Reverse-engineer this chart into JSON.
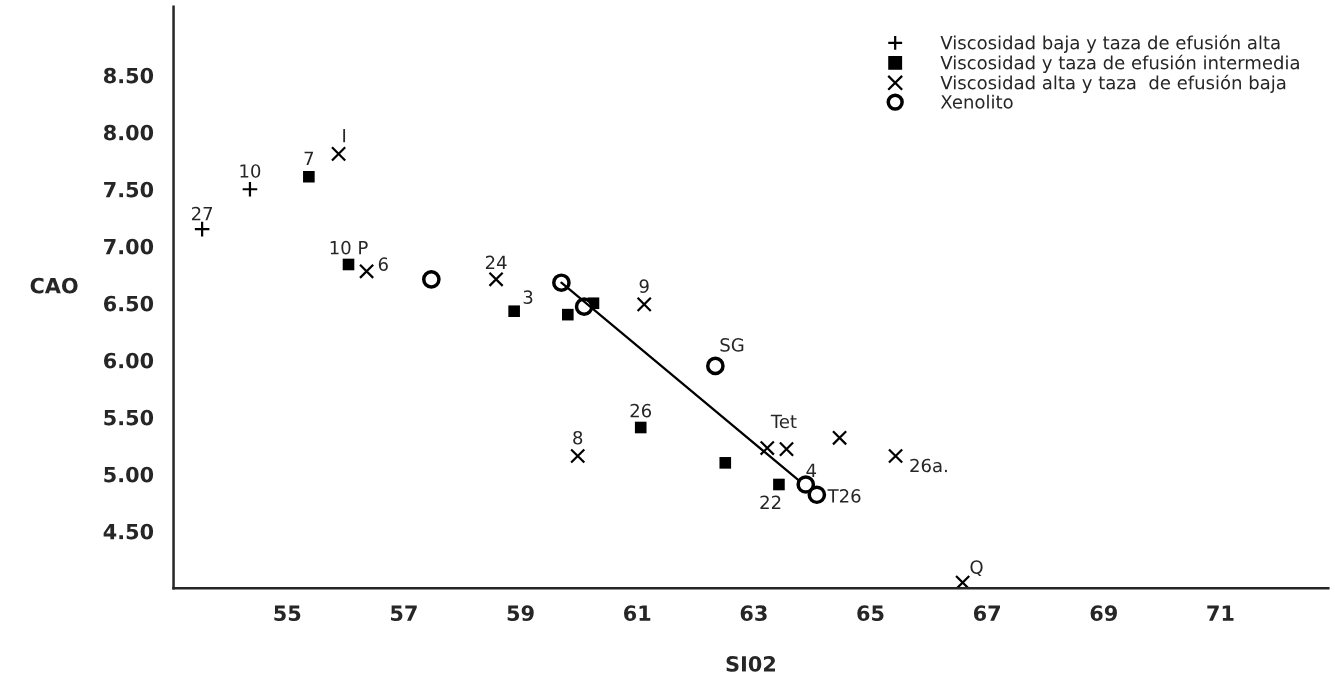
{
  "chart_data": {
    "type": "scatter",
    "xlabel": "SI02",
    "ylabel": "CAO",
    "xlim": [
      53.05,
      72.85
    ],
    "ylim": [
      4.0,
      9.1
    ],
    "xticks": [
      55,
      57,
      59,
      61,
      63,
      65,
      67,
      69,
      71
    ],
    "yticks": [
      {
        "value": 4.5,
        "label": "4.50"
      },
      {
        "value": 5.0,
        "label": "5.00"
      },
      {
        "value": 5.5,
        "label": "5.50"
      },
      {
        "value": 6.0,
        "label": "6.00"
      },
      {
        "value": 6.5,
        "label": "6.50"
      },
      {
        "value": 7.0,
        "label": "7.00"
      },
      {
        "value": 7.5,
        "label": "7.50"
      },
      {
        "value": 8.0,
        "label": "8.00"
      },
      {
        "value": 8.5,
        "label": "8.50"
      }
    ],
    "grid": false,
    "legend": "top right",
    "series": [
      {
        "name": "Viscosidad baja y taza de efusión alta",
        "color": "#000000",
        "marker": "plus",
        "x": [
          53.54,
          54.36
        ],
        "values": [
          7.15,
          7.5
        ]
      },
      {
        "name": "Viscosidad y taza de efusión intermedia",
        "color": "#000000",
        "marker": "square",
        "x": [
          55.37,
          56.05,
          58.89,
          59.81,
          60.25,
          61.06,
          62.51,
          63.43
        ],
        "values": [
          7.61,
          6.84,
          6.43,
          6.4,
          6.5,
          5.41,
          5.1,
          4.91
        ]
      },
      {
        "name": "Viscosidad alta y taza  de efusión baja",
        "color": "#000000",
        "marker": "x",
        "x": [
          55.88,
          56.36,
          58.58,
          61.12,
          59.98,
          63.23,
          63.56,
          64.47,
          65.43,
          66.58
        ],
        "values": [
          7.81,
          6.78,
          6.71,
          6.49,
          5.16,
          5.23,
          5.22,
          5.32,
          5.16,
          4.05
        ]
      },
      {
        "name": "Xenolito",
        "color": "#000000",
        "marker": "circle",
        "x": [
          57.47,
          59.7,
          60.09,
          62.34,
          63.89,
          64.08
        ],
        "values": [
          6.71,
          6.68,
          6.47,
          5.95,
          4.91,
          4.82
        ]
      },
      {
        "type": "line",
        "color": "#000000",
        "x": [
          59.7,
          63.76
        ],
        "values": [
          6.68,
          4.95
        ]
      }
    ],
    "annotations": [
      {
        "text": "27",
        "x": 53.54,
        "y": 7.15
      },
      {
        "text": "10",
        "x": 54.36,
        "y": 7.5
      },
      {
        "text": "7",
        "x": 55.37,
        "y": 7.61
      },
      {
        "text": "I",
        "x": 55.88,
        "y": 7.81
      },
      {
        "text": "10 P",
        "x": 56.05,
        "y": 6.84
      },
      {
        "text": "6",
        "x": 56.36,
        "y": 6.78
      },
      {
        "text": "24",
        "x": 58.58,
        "y": 6.71
      },
      {
        "text": "3",
        "x": 58.89,
        "y": 6.43
      },
      {
        "text": "9",
        "x": 61.12,
        "y": 6.49
      },
      {
        "text": "SG",
        "x": 62.34,
        "y": 5.95
      },
      {
        "text": "26",
        "x": 61.06,
        "y": 5.41
      },
      {
        "text": "8",
        "x": 59.98,
        "y": 5.16
      },
      {
        "text": "Tet",
        "x": 63.23,
        "y": 5.23
      },
      {
        "text": "4",
        "x": 63.89,
        "y": 4.91
      },
      {
        "text": "22",
        "x": 63.43,
        "y": 4.91
      },
      {
        "text": "T26",
        "x": 64.08,
        "y": 4.82
      },
      {
        "text": "26a.",
        "x": 65.43,
        "y": 5.16
      },
      {
        "text": "Q",
        "x": 66.58,
        "y": 4.05
      }
    ]
  }
}
